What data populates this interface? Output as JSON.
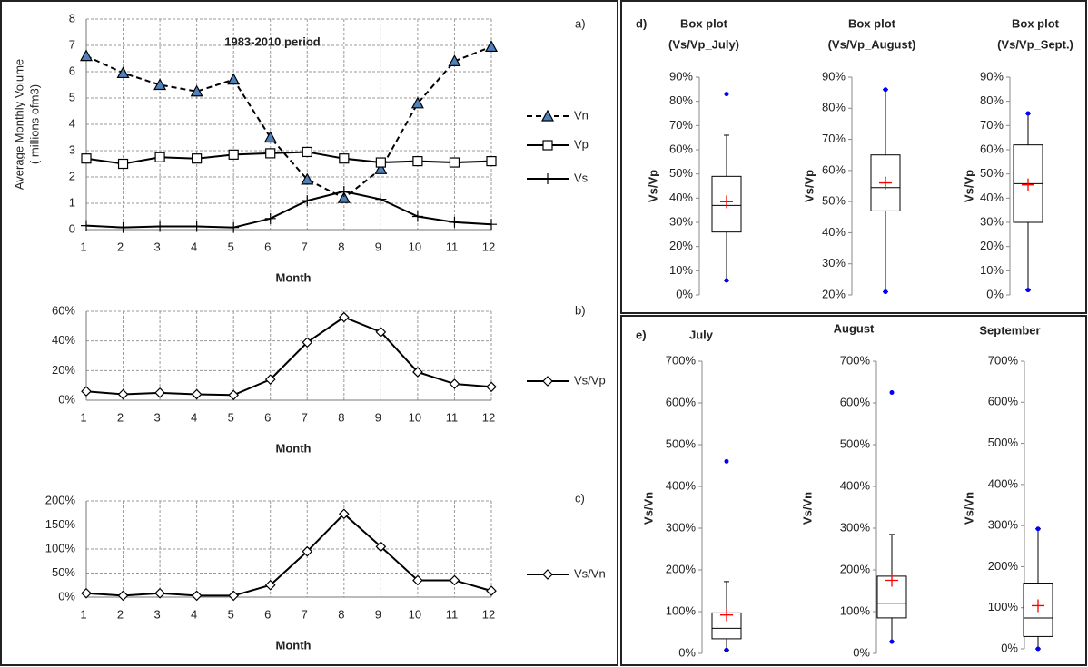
{
  "chart_data": [
    {
      "type": "line",
      "panel_label": "a)",
      "title": "1983-2010 period",
      "x_label": "Month",
      "y_label": [
        "Average Monthly Volume",
        "( millions ofm3)"
      ],
      "x": [
        1,
        2,
        3,
        4,
        5,
        6,
        7,
        8,
        9,
        10,
        11,
        12
      ],
      "xlim": [
        1,
        12
      ],
      "xticks": [
        1,
        2,
        3,
        4,
        5,
        6,
        7,
        8,
        9,
        10,
        11,
        12
      ],
      "ylim": [
        0,
        8
      ],
      "yticks": [
        0,
        1,
        2,
        3,
        4,
        5,
        6,
        7,
        8
      ],
      "grid": true,
      "series": [
        {
          "name": "Vn",
          "color": "#000000",
          "marker": "triangle",
          "marker_color": "#4f81bd",
          "line_style": "dashed",
          "values": [
            6.6,
            5.95,
            5.5,
            5.25,
            5.7,
            3.5,
            1.9,
            1.2,
            2.3,
            4.8,
            6.4,
            6.95
          ]
        },
        {
          "name": "Vp",
          "color": "#000000",
          "marker": "square",
          "marker_color": "#ffffff",
          "line_style": "solid",
          "values": [
            2.7,
            2.5,
            2.75,
            2.7,
            2.85,
            2.9,
            2.95,
            2.7,
            2.55,
            2.6,
            2.55,
            2.6
          ]
        },
        {
          "name": "Vs",
          "color": "#000000",
          "marker": "plus",
          "marker_color": "#000000",
          "line_style": "solid",
          "values": [
            0.15,
            0.08,
            0.12,
            0.12,
            0.08,
            0.42,
            1.1,
            1.45,
            1.15,
            0.5,
            0.28,
            0.2
          ]
        }
      ]
    },
    {
      "type": "line",
      "panel_label": "b)",
      "x_label": "Month",
      "x": [
        1,
        2,
        3,
        4,
        5,
        6,
        7,
        8,
        9,
        10,
        11,
        12
      ],
      "xlim": [
        1,
        12
      ],
      "xticks": [
        1,
        2,
        3,
        4,
        5,
        6,
        7,
        8,
        9,
        10,
        11,
        12
      ],
      "ylim": [
        0,
        60
      ],
      "yticks": [
        {
          "value": 0,
          "label": "0%"
        },
        {
          "value": 20,
          "label": "20%"
        },
        {
          "value": 40,
          "label": "40%"
        },
        {
          "value": 60,
          "label": "60%"
        }
      ],
      "grid": true,
      "series": [
        {
          "name": "Vs/Vp",
          "color": "#000000",
          "marker": "diamond",
          "marker_color": "#ffffff",
          "line_style": "solid",
          "values": [
            6,
            4,
            5,
            4,
            3.5,
            14,
            39,
            56,
            46,
            19,
            11,
            9
          ]
        }
      ]
    },
    {
      "type": "line",
      "panel_label": "c)",
      "x_label": "Month",
      "x": [
        1,
        2,
        3,
        4,
        5,
        6,
        7,
        8,
        9,
        10,
        11,
        12
      ],
      "xlim": [
        1,
        12
      ],
      "xticks": [
        1,
        2,
        3,
        4,
        5,
        6,
        7,
        8,
        9,
        10,
        11,
        12
      ],
      "ylim": [
        0,
        200
      ],
      "yticks": [
        {
          "value": 0,
          "label": "0%"
        },
        {
          "value": 50,
          "label": "50%"
        },
        {
          "value": 100,
          "label": "100%"
        },
        {
          "value": 150,
          "label": "150%"
        },
        {
          "value": 200,
          "label": "200%"
        }
      ],
      "grid": true,
      "series": [
        {
          "name": "Vs/Vn",
          "color": "#000000",
          "marker": "diamond",
          "marker_color": "#ffffff",
          "line_style": "solid",
          "values": [
            8,
            3,
            8,
            3,
            3,
            25,
            95,
            173,
            105,
            35,
            35,
            13
          ]
        }
      ]
    },
    {
      "type": "box",
      "panel_label": "d)",
      "title": [
        "Box plot",
        "(Vs/Vp_July)"
      ],
      "y_label": "Vs/Vp",
      "ylim": [
        0,
        90
      ],
      "yticks": [
        {
          "value": 0,
          "label": "0%"
        },
        {
          "value": 10,
          "label": "10%"
        },
        {
          "value": 20,
          "label": "20%"
        },
        {
          "value": 30,
          "label": "30%"
        },
        {
          "value": 40,
          "label": "40%"
        },
        {
          "value": 50,
          "label": "50%"
        },
        {
          "value": 60,
          "label": "60%"
        },
        {
          "value": 70,
          "label": "70%"
        },
        {
          "value": 80,
          "label": "80%"
        },
        {
          "value": 90,
          "label": "90%"
        }
      ],
      "box_color": "#000000",
      "mean_color": "#ff0000",
      "point_color": "#0000ff",
      "min": 6,
      "whisker_low": 6,
      "q1": 26,
      "median": 37,
      "q3": 49,
      "whisker_high": 66,
      "max": 83,
      "mean": 38.5
    },
    {
      "type": "box",
      "title": [
        "Box plot",
        "(Vs/Vp_August)"
      ],
      "y_label": "Vs/Vp",
      "ylim": [
        20,
        90
      ],
      "yticks": [
        {
          "value": 20,
          "label": "20%"
        },
        {
          "value": 30,
          "label": "30%"
        },
        {
          "value": 40,
          "label": "40%"
        },
        {
          "value": 50,
          "label": "50%"
        },
        {
          "value": 60,
          "label": "60%"
        },
        {
          "value": 70,
          "label": "70%"
        },
        {
          "value": 80,
          "label": "80%"
        },
        {
          "value": 90,
          "label": "90%"
        }
      ],
      "box_color": "#000000",
      "mean_color": "#ff0000",
      "point_color": "#0000ff",
      "min": 21,
      "whisker_low": 21,
      "q1": 47,
      "median": 54.5,
      "q3": 65,
      "whisker_high": 86,
      "max": 86,
      "mean": 56
    },
    {
      "type": "box",
      "title": [
        "Box plot",
        "(Vs/Vp_Sept.)"
      ],
      "y_label": "Vs/Vp",
      "ylim": [
        0,
        90
      ],
      "yticks": [
        {
          "value": 0,
          "label": "0%"
        },
        {
          "value": 10,
          "label": "10%"
        },
        {
          "value": 20,
          "label": "20%"
        },
        {
          "value": 30,
          "label": "30%"
        },
        {
          "value": 40,
          "label": "40%"
        },
        {
          "value": 50,
          "label": "50%"
        },
        {
          "value": 60,
          "label": "60%"
        },
        {
          "value": 70,
          "label": "70%"
        },
        {
          "value": 80,
          "label": "80%"
        },
        {
          "value": 90,
          "label": "90%"
        }
      ],
      "box_color": "#000000",
      "mean_color": "#ff0000",
      "point_color": "#0000ff",
      "min": 2,
      "whisker_low": 2,
      "q1": 30,
      "median": 46,
      "q3": 62,
      "whisker_high": 75,
      "max": 75,
      "mean": 45.5
    },
    {
      "type": "box",
      "panel_label": "e)",
      "title": "July",
      "y_label": "Vs/Vn",
      "ylim": [
        0,
        700
      ],
      "yticks": [
        {
          "value": 0,
          "label": "0%"
        },
        {
          "value": 100,
          "label": "100%"
        },
        {
          "value": 200,
          "label": "200%"
        },
        {
          "value": 300,
          "label": "300%"
        },
        {
          "value": 400,
          "label": "400%"
        },
        {
          "value": 500,
          "label": "500%"
        },
        {
          "value": 600,
          "label": "600%"
        },
        {
          "value": 700,
          "label": "700%"
        }
      ],
      "box_color": "#000000",
      "mean_color": "#ff0000",
      "point_color": "#0000ff",
      "min": 8,
      "whisker_low": 8,
      "q1": 35,
      "median": 60,
      "q3": 97,
      "whisker_high": 172,
      "max": 460,
      "mean": 92
    },
    {
      "type": "box",
      "title": "August",
      "y_label": "Vs/Vn",
      "ylim": [
        0,
        700
      ],
      "yticks": [
        {
          "value": 0,
          "label": "0%"
        },
        {
          "value": 100,
          "label": "100%"
        },
        {
          "value": 200,
          "label": "200%"
        },
        {
          "value": 300,
          "label": "300%"
        },
        {
          "value": 400,
          "label": "400%"
        },
        {
          "value": 500,
          "label": "500%"
        },
        {
          "value": 600,
          "label": "600%"
        },
        {
          "value": 700,
          "label": "700%"
        }
      ],
      "box_color": "#000000",
      "mean_color": "#ff0000",
      "point_color": "#0000ff",
      "min": 28,
      "whisker_low": 28,
      "q1": 85,
      "median": 120,
      "q3": 185,
      "whisker_high": 285,
      "max": 625,
      "mean": 175
    },
    {
      "type": "box",
      "title": "September",
      "y_label": "Vs/Vn",
      "ylim": [
        0,
        700
      ],
      "yticks": [
        {
          "value": 0,
          "label": "0%"
        },
        {
          "value": 100,
          "label": "100%"
        },
        {
          "value": 200,
          "label": "200%"
        },
        {
          "value": 300,
          "label": "300%"
        },
        {
          "value": 400,
          "label": "400%"
        },
        {
          "value": 500,
          "label": "500%"
        },
        {
          "value": 600,
          "label": "600%"
        },
        {
          "value": 700,
          "label": "700%"
        }
      ],
      "box_color": "#000000",
      "mean_color": "#ff0000",
      "point_color": "#0000ff",
      "min": 0,
      "whisker_low": 0,
      "q1": 30,
      "median": 75,
      "q3": 160,
      "whisker_high": 292,
      "max": 292,
      "mean": 105
    }
  ]
}
